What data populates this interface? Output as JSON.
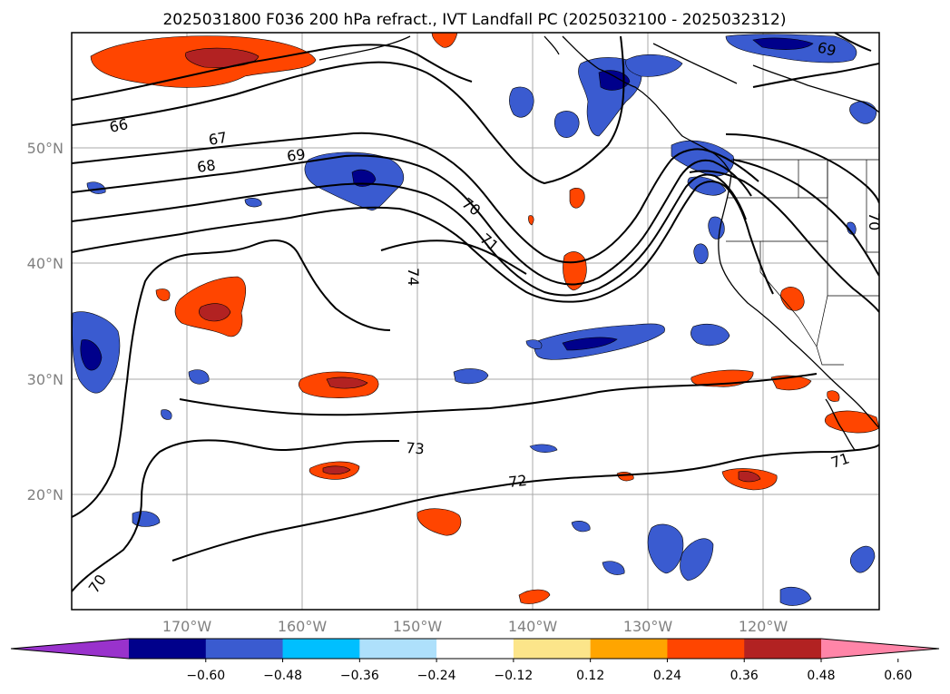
{
  "title": "2025031800 F036 200 hPa refract., IVT Landfall PC (2025032100 - 2025032312)",
  "lat_labels": [
    "50°N",
    "40°N",
    "30°N",
    "20°N"
  ],
  "lon_labels": [
    "170°W",
    "160°W",
    "150°W",
    "140°W",
    "130°W",
    "120°W"
  ],
  "contour_labels": [
    "66",
    "67",
    "68",
    "69",
    "69",
    "70",
    "71",
    "74",
    "73",
    "72",
    "71",
    "70",
    "70"
  ],
  "colorbar": {
    "colors": [
      "#9932cc",
      "#00008b",
      "#3a5bd0",
      "#00bfff",
      "#aee0fb",
      "#ffffff",
      "#fce58a",
      "#ffa500",
      "#ff4500",
      "#b22222",
      "#ff85a8"
    ],
    "tick_labels": [
      "−0.60",
      "−0.48",
      "−0.36",
      "−0.24",
      "−0.12",
      "0.12",
      "0.24",
      "0.36",
      "0.48",
      "0.60"
    ]
  }
}
